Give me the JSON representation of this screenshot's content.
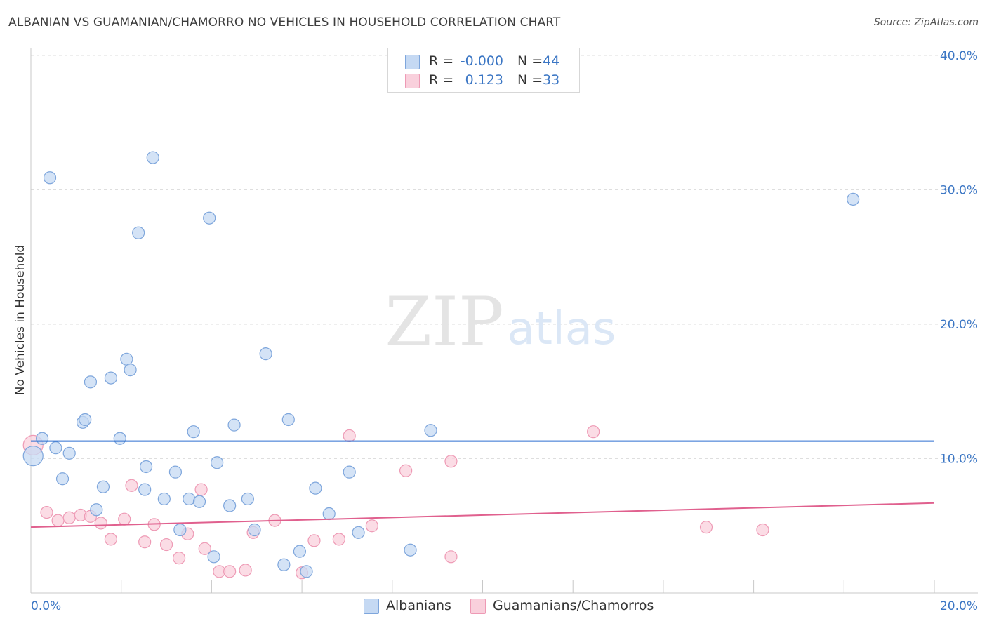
{
  "title": "ALBANIAN VS GUAMANIAN/CHAMORRO NO VEHICLES IN HOUSEHOLD CORRELATION CHART",
  "source": "Source: ZipAtlas.com",
  "watermark": {
    "zip": "ZIP",
    "atlas": "atlas"
  },
  "colors": {
    "blue_fill": "#c5d9f3",
    "blue_stroke": "#7ea6dc",
    "blue_line": "#2f6fd0",
    "pink_fill": "#f9d0dc",
    "pink_stroke": "#ee9ab5",
    "pink_line": "#e0608e",
    "axis_label": "#3b76c4",
    "grid": "#dedede"
  },
  "legend": {
    "series": [
      {
        "r_label": "R =",
        "r_value": "-0.000",
        "n_label": "N =",
        "n_value": "44"
      },
      {
        "r_label": "R =",
        "r_value": "0.123",
        "n_label": "N =",
        "n_value": "33"
      }
    ]
  },
  "chart_data": {
    "type": "scatter",
    "title": "ALBANIAN VS GUAMANIAN/CHAMORRO NO VEHICLES IN HOUSEHOLD CORRELATION CHART",
    "xlabel": "",
    "ylabel": "No Vehicles in Household",
    "xlim": [
      0,
      20
    ],
    "ylim": [
      0,
      40
    ],
    "x_tick_labels": [
      "0.0%",
      "20.0%"
    ],
    "y_tick_values": [
      10,
      20,
      30,
      40
    ],
    "y_tick_labels": [
      "10.0%",
      "20.0%",
      "30.0%",
      "40.0%"
    ],
    "grid": true,
    "series": [
      {
        "name": "Albanians",
        "trend": {
          "x": [
            0,
            20
          ],
          "y": [
            11.3,
            11.3
          ]
        },
        "points": [
          {
            "x": 0.05,
            "y": 10.2,
            "big": true
          },
          {
            "x": 0.25,
            "y": 11.5
          },
          {
            "x": 0.55,
            "y": 10.8
          },
          {
            "x": 0.85,
            "y": 10.4
          },
          {
            "x": 0.7,
            "y": 8.5
          },
          {
            "x": 1.15,
            "y": 12.7
          },
          {
            "x": 1.2,
            "y": 12.9
          },
          {
            "x": 1.45,
            "y": 6.2
          },
          {
            "x": 1.6,
            "y": 7.9
          },
          {
            "x": 1.32,
            "y": 15.7
          },
          {
            "x": 1.77,
            "y": 16.0
          },
          {
            "x": 1.97,
            "y": 11.5
          },
          {
            "x": 2.12,
            "y": 17.4
          },
          {
            "x": 2.2,
            "y": 16.6
          },
          {
            "x": 0.42,
            "y": 30.9
          },
          {
            "x": 2.38,
            "y": 26.8
          },
          {
            "x": 2.7,
            "y": 32.4
          },
          {
            "x": 2.55,
            "y": 9.4
          },
          {
            "x": 2.52,
            "y": 7.7
          },
          {
            "x": 2.95,
            "y": 7.0
          },
          {
            "x": 3.2,
            "y": 9.0
          },
          {
            "x": 3.3,
            "y": 4.7
          },
          {
            "x": 3.5,
            "y": 7.0
          },
          {
            "x": 3.6,
            "y": 12.0
          },
          {
            "x": 3.73,
            "y": 6.8
          },
          {
            "x": 3.95,
            "y": 27.9
          },
          {
            "x": 4.12,
            "y": 9.7
          },
          {
            "x": 4.05,
            "y": 2.7
          },
          {
            "x": 4.4,
            "y": 6.5
          },
          {
            "x": 4.5,
            "y": 12.5
          },
          {
            "x": 4.8,
            "y": 7.0
          },
          {
            "x": 4.95,
            "y": 4.7
          },
          {
            "x": 5.2,
            "y": 17.8
          },
          {
            "x": 5.7,
            "y": 12.9
          },
          {
            "x": 5.6,
            "y": 2.1
          },
          {
            "x": 5.95,
            "y": 3.1
          },
          {
            "x": 6.1,
            "y": 1.6
          },
          {
            "x": 6.3,
            "y": 7.8
          },
          {
            "x": 6.6,
            "y": 5.9
          },
          {
            "x": 7.05,
            "y": 9.0
          },
          {
            "x": 7.25,
            "y": 4.5
          },
          {
            "x": 8.4,
            "y": 3.2
          },
          {
            "x": 8.85,
            "y": 12.1
          },
          {
            "x": 18.2,
            "y": 29.3
          }
        ]
      },
      {
        "name": "Guamanians/Chamorros",
        "trend": {
          "x": [
            0,
            20
          ],
          "y": [
            4.9,
            6.7
          ]
        },
        "points": [
          {
            "x": 0.05,
            "y": 11.0,
            "big": true
          },
          {
            "x": 0.35,
            "y": 6.0
          },
          {
            "x": 0.6,
            "y": 5.4
          },
          {
            "x": 0.85,
            "y": 5.6
          },
          {
            "x": 1.1,
            "y": 5.8
          },
          {
            "x": 1.32,
            "y": 5.7
          },
          {
            "x": 1.55,
            "y": 5.2
          },
          {
            "x": 1.77,
            "y": 4.0
          },
          {
            "x": 2.07,
            "y": 5.5
          },
          {
            "x": 2.23,
            "y": 8.0
          },
          {
            "x": 2.52,
            "y": 3.8
          },
          {
            "x": 2.73,
            "y": 5.1
          },
          {
            "x": 3.0,
            "y": 3.6
          },
          {
            "x": 3.28,
            "y": 2.6
          },
          {
            "x": 3.47,
            "y": 4.4
          },
          {
            "x": 3.77,
            "y": 7.7
          },
          {
            "x": 3.85,
            "y": 3.3
          },
          {
            "x": 4.17,
            "y": 1.6
          },
          {
            "x": 4.4,
            "y": 1.6
          },
          {
            "x": 4.75,
            "y": 1.7
          },
          {
            "x": 4.92,
            "y": 4.5
          },
          {
            "x": 5.4,
            "y": 5.4
          },
          {
            "x": 6.0,
            "y": 1.5
          },
          {
            "x": 6.27,
            "y": 3.9
          },
          {
            "x": 6.82,
            "y": 4.0
          },
          {
            "x": 7.05,
            "y": 11.7
          },
          {
            "x": 7.55,
            "y": 5.0
          },
          {
            "x": 8.3,
            "y": 9.1
          },
          {
            "x": 9.3,
            "y": 9.8
          },
          {
            "x": 9.3,
            "y": 2.7
          },
          {
            "x": 12.45,
            "y": 12.0
          },
          {
            "x": 14.95,
            "y": 4.9
          },
          {
            "x": 16.2,
            "y": 4.7
          }
        ]
      }
    ]
  }
}
